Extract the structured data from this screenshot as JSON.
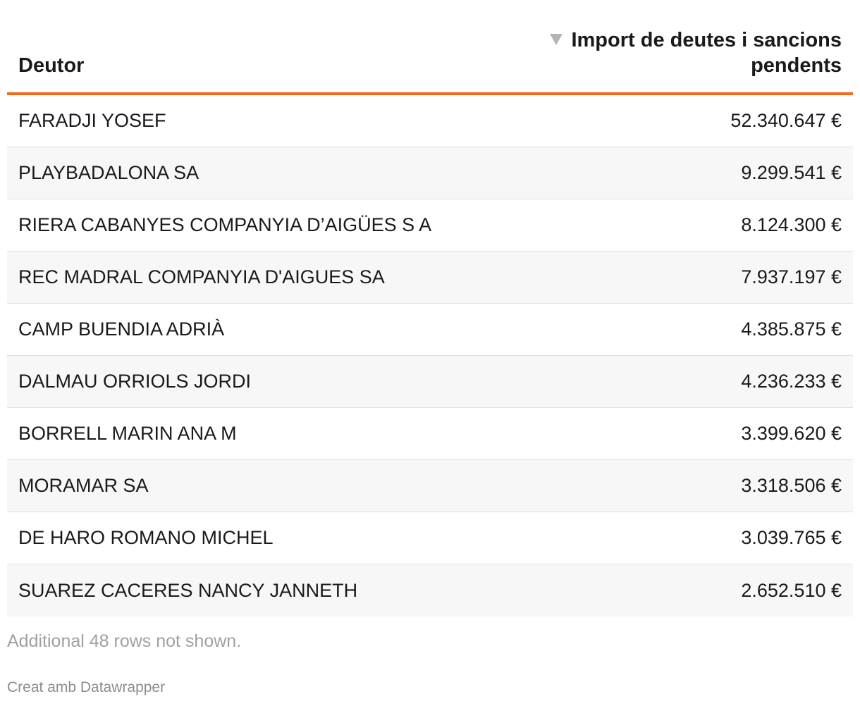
{
  "table": {
    "headers": {
      "debtor": "Deutor",
      "amount_line1": "Import de deutes i sancions",
      "amount_line2": "pendents"
    },
    "rows": [
      {
        "name": "FARADJI YOSEF",
        "amount": "52.340.647 €"
      },
      {
        "name": "PLAYBADALONA SA",
        "amount": "9.299.541 €"
      },
      {
        "name": "RIERA CABANYES COMPANYIA D’AIGÜES S A",
        "amount": "8.124.300 €"
      },
      {
        "name": "REC MADRAL COMPANYIA D'AIGUES SA",
        "amount": "7.937.197 €"
      },
      {
        "name": "CAMP BUENDIA ADRIÀ",
        "amount": "4.385.875 €"
      },
      {
        "name": "DALMAU ORRIOLS JORDI",
        "amount": "4.236.233 €"
      },
      {
        "name": "BORRELL MARIN ANA M",
        "amount": "3.399.620 €"
      },
      {
        "name": "MORAMAR SA",
        "amount": "3.318.506 €"
      },
      {
        "name": "DE HARO ROMANO MICHEL",
        "amount": "3.039.765 €"
      },
      {
        "name": "SUAREZ CACERES NANCY JANNETH",
        "amount": "2.652.510 €"
      }
    ],
    "footer_note": "Additional 48 rows not shown."
  },
  "credit": "Creat amb Datawrapper",
  "colors": {
    "accent": "#f26a1b",
    "sort_icon": "#b4b4b4"
  },
  "icons": {
    "sort": "sort-descending-icon"
  }
}
